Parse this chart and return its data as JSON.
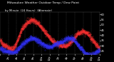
{
  "title1": "Milwaukee Weather Outdoor Temp / Dew Point",
  "title2": "by Minute  (24 Hours)  (Alternate)",
  "bg_color": "#000000",
  "plot_bg_color": "#000000",
  "temp_color": "#ff3333",
  "dew_color": "#3333ff",
  "ylim": [
    22,
    62
  ],
  "yticks": [
    25,
    30,
    35,
    40,
    45,
    50,
    55,
    60
  ],
  "ytick_labels": [
    "25",
    "30",
    "35",
    "40",
    "45",
    "50",
    "55",
    "60"
  ],
  "n_points": 1440,
  "grid_color": "#555555",
  "title_fontsize": 3.5,
  "tick_fontsize": 2.8,
  "temp_data": [
    35,
    34,
    33,
    32,
    31,
    31,
    30,
    30,
    29,
    29,
    28,
    28,
    27,
    27,
    27,
    27,
    28,
    29,
    30,
    32,
    34,
    36,
    38,
    40,
    42,
    44,
    46,
    47,
    48,
    49,
    50,
    51,
    52,
    52,
    53,
    54,
    54,
    55,
    55,
    55,
    54,
    54,
    53,
    53,
    52,
    52,
    51,
    50,
    49,
    48,
    47,
    46,
    45,
    44,
    43,
    42,
    41,
    40,
    39,
    38,
    37,
    36,
    35,
    34,
    34,
    33,
    33,
    32,
    32,
    32,
    31,
    31,
    31,
    30,
    30,
    30,
    30,
    30,
    30,
    30,
    31,
    31,
    32,
    32,
    33,
    34,
    35,
    36,
    37,
    38,
    39,
    40,
    41,
    42,
    42,
    43,
    43,
    44,
    44,
    44,
    44,
    43,
    43,
    42,
    42,
    41,
    40,
    39,
    38,
    37,
    36,
    35,
    34,
    33,
    32,
    31,
    30,
    29,
    28,
    27
  ],
  "dew_data": [
    28,
    27,
    27,
    26,
    26,
    25,
    25,
    25,
    24,
    24,
    24,
    24,
    23,
    23,
    23,
    23,
    23,
    24,
    24,
    25,
    25,
    26,
    27,
    28,
    29,
    30,
    31,
    32,
    32,
    33,
    33,
    34,
    35,
    35,
    36,
    36,
    37,
    37,
    37,
    37,
    37,
    37,
    36,
    36,
    35,
    35,
    34,
    34,
    33,
    33,
    32,
    32,
    31,
    31,
    30,
    30,
    30,
    29,
    29,
    29,
    29,
    29,
    29,
    30,
    30,
    31,
    31,
    32,
    32,
    32,
    33,
    33,
    33,
    34,
    34,
    34,
    35,
    35,
    36,
    36,
    36,
    37,
    37,
    37,
    37,
    37,
    37,
    36,
    36,
    35,
    34,
    33,
    32,
    31,
    30,
    29,
    28,
    27,
    26,
    25,
    24,
    23,
    22,
    22,
    22,
    21,
    21,
    21,
    21,
    21,
    21,
    22,
    22,
    23,
    23,
    24,
    24,
    25,
    25,
    26
  ]
}
